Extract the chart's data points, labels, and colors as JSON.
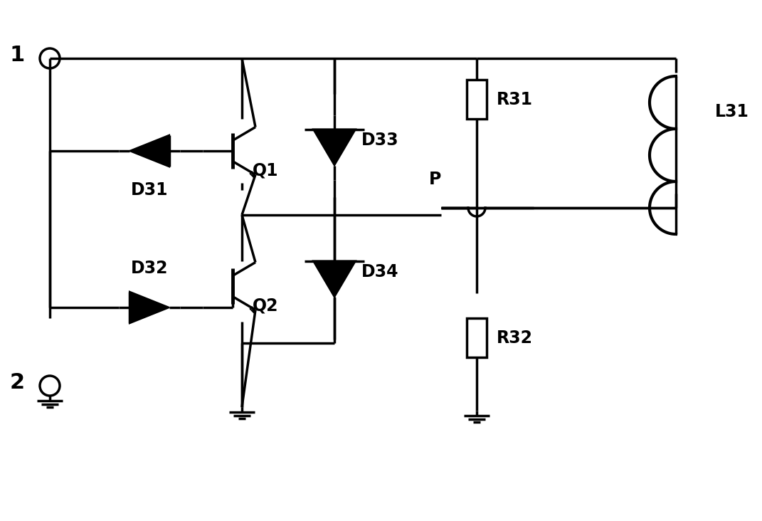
{
  "bg_color": "#ffffff",
  "line_color": "#000000",
  "line_width": 2.5,
  "fig_width": 10.71,
  "fig_height": 7.32,
  "labels": {
    "node1": "1",
    "node2": "2",
    "D31": "D31",
    "D32": "D32",
    "D33": "D33",
    "D34": "D34",
    "Q1": "Q1",
    "Q2": "Q2",
    "R31": "R31",
    "R32": "R32",
    "L31": "L31",
    "P": "P"
  }
}
